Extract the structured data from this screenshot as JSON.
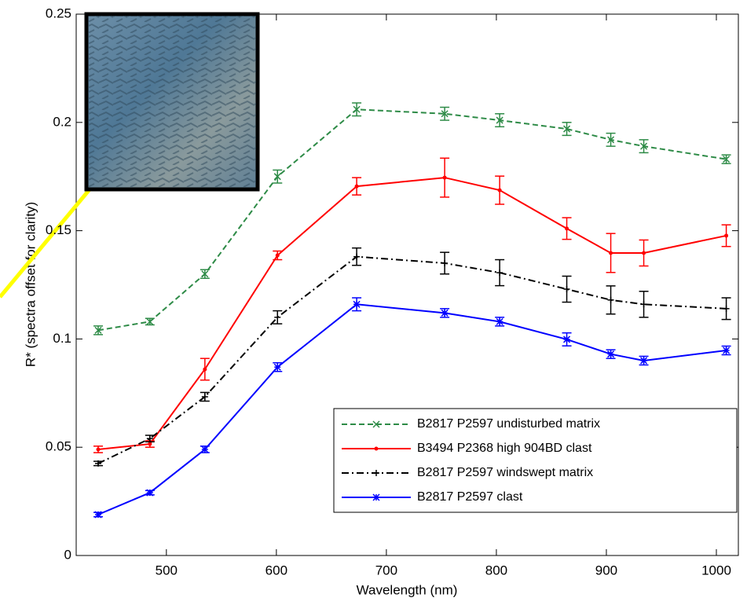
{
  "chart_data": {
    "type": "line",
    "xlabel": "Wavelength (nm)",
    "ylabel": "R* (spectra offset for clarity)",
    "x": [
      438,
      485,
      535,
      601,
      673,
      753,
      803,
      864,
      904,
      934,
      1009
    ],
    "xlim": [
      418,
      1020
    ],
    "xticks": [
      500,
      600,
      700,
      800,
      900,
      1000
    ],
    "ylim": [
      0,
      0.25
    ],
    "yticks": [
      0,
      0.05,
      0.1,
      0.15,
      0.2,
      0.25
    ],
    "legend": "lower right",
    "series": [
      {
        "name": "B2817 P2597 undisturbed matrix",
        "color": "#2e8b47",
        "dash": "dashed",
        "marker": "x",
        "values": [
          0.104,
          0.108,
          0.13,
          0.175,
          0.206,
          0.204,
          0.201,
          0.197,
          0.192,
          0.189,
          0.183
        ],
        "errors": [
          0.002,
          0.0015,
          0.002,
          0.003,
          0.003,
          0.003,
          0.003,
          0.003,
          0.003,
          0.003,
          0.002
        ]
      },
      {
        "name": "B3494 P2368 high 904BD clast",
        "color": "#ff0000",
        "dash": "solid",
        "marker": "dot",
        "values": [
          0.049,
          0.0515,
          0.086,
          0.1386,
          0.1705,
          0.1745,
          0.1687,
          0.151,
          0.1397,
          0.1397,
          0.1477
        ],
        "errors": [
          0.0015,
          0.0015,
          0.005,
          0.002,
          0.004,
          0.009,
          0.0065,
          0.005,
          0.009,
          0.006,
          0.005
        ]
      },
      {
        "name": "B2817 P2597 windswept matrix",
        "color": "#000000",
        "dash": "dashdot",
        "marker": "plus",
        "values": [
          0.0425,
          0.054,
          0.0733,
          0.11,
          0.138,
          0.135,
          0.1306,
          0.123,
          0.118,
          0.116,
          0.114
        ],
        "errors": [
          0.001,
          0.0015,
          0.002,
          0.003,
          0.004,
          0.005,
          0.006,
          0.006,
          0.0065,
          0.006,
          0.005
        ]
      },
      {
        "name": "B2817 P2597 clast",
        "color": "#0000ff",
        "dash": "solid",
        "marker": "star",
        "values": [
          0.0189,
          0.029,
          0.049,
          0.087,
          0.116,
          0.112,
          0.108,
          0.0998,
          0.093,
          0.09,
          0.0947
        ],
        "errors": [
          0.001,
          0.001,
          0.0015,
          0.002,
          0.003,
          0.002,
          0.002,
          0.003,
          0.002,
          0.002,
          0.002
        ]
      }
    ]
  }
}
